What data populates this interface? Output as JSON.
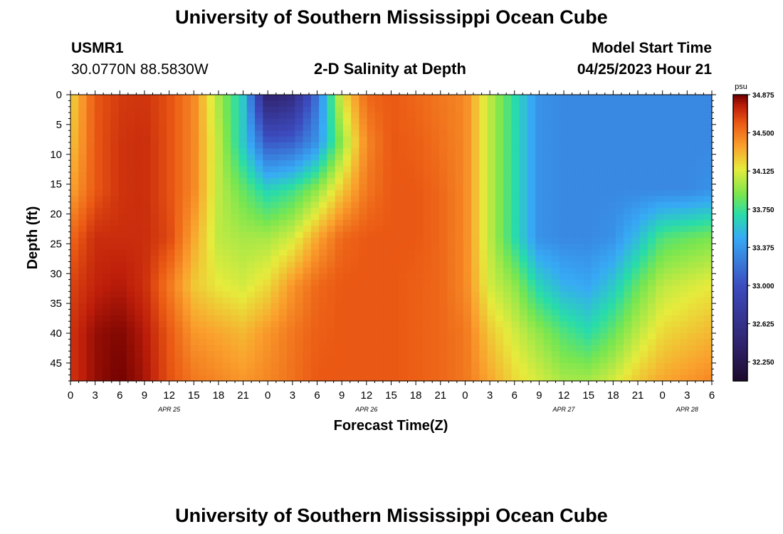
{
  "header": {
    "title": "University of Southern Mississippi Ocean Cube",
    "station_id": "USMR1",
    "coordinates": "30.0770N  88.5830W",
    "subtitle": "2-D Salinity at Depth",
    "model_start_label": "Model Start Time",
    "model_start_value": "04/25/2023 Hour 21"
  },
  "footer": {
    "title": "University of Southern Mississippi Ocean Cube"
  },
  "chart_data": {
    "type": "heatmap",
    "xlabel": "Forecast Time(Z)",
    "ylabel": "Depth (ft)",
    "x_ticks": [
      "0",
      "3",
      "6",
      "9",
      "12",
      "15",
      "18",
      "21",
      "0",
      "3",
      "6",
      "9",
      "12",
      "15",
      "18",
      "21",
      "0",
      "3",
      "6",
      "9",
      "12",
      "15",
      "18",
      "21",
      "0",
      "3",
      "6"
    ],
    "x_date_labels": [
      {
        "label": "APR 25",
        "at_tick": 4
      },
      {
        "label": "APR 26",
        "at_tick": 12
      },
      {
        "label": "APR 27",
        "at_tick": 20
      },
      {
        "label": "APR 28",
        "at_tick": 25
      }
    ],
    "x_range_hours": [
      0,
      78
    ],
    "y_ticks": [
      0,
      5,
      10,
      15,
      20,
      25,
      30,
      35,
      40,
      45
    ],
    "y_range_ft": [
      0,
      48
    ],
    "y_inverted": true,
    "colorbar": {
      "unit": "psu",
      "min": 32.0625,
      "max": 34.875,
      "labels": [
        "34.875",
        "34.500",
        "34.125",
        "33.750",
        "33.375",
        "33.000",
        "32.625",
        "32.250"
      ]
    },
    "salinity_grid": {
      "depths_ft": [
        0,
        8,
        16,
        24,
        32,
        40,
        48
      ],
      "hours": [
        0,
        3,
        6,
        9,
        12,
        15,
        18,
        21,
        24,
        27,
        30,
        33,
        36,
        39,
        42,
        45,
        48,
        51,
        54,
        57,
        60,
        63,
        66,
        69,
        72,
        75,
        78
      ],
      "values": [
        [
          34.2,
          34.6,
          34.68,
          34.7,
          34.62,
          34.45,
          34.0,
          33.6,
          32.4,
          32.55,
          33.2,
          34.15,
          34.55,
          34.6,
          34.55,
          34.5,
          34.45,
          34.05,
          33.7,
          33.35,
          33.3,
          33.3,
          33.3,
          33.3,
          33.3,
          33.3,
          33.3
        ],
        [
          34.25,
          34.6,
          34.7,
          34.72,
          34.62,
          34.45,
          34.05,
          33.6,
          33.05,
          33.1,
          33.35,
          33.95,
          34.45,
          34.6,
          34.58,
          34.52,
          34.45,
          34.05,
          33.7,
          33.35,
          33.3,
          33.3,
          33.3,
          33.3,
          33.3,
          33.3,
          33.3
        ],
        [
          34.35,
          34.6,
          34.7,
          34.72,
          34.62,
          34.45,
          34.05,
          33.85,
          33.65,
          33.75,
          33.95,
          34.25,
          34.5,
          34.6,
          34.6,
          34.55,
          34.45,
          34.05,
          33.7,
          33.35,
          33.3,
          33.3,
          33.3,
          33.3,
          33.3,
          33.3,
          33.35
        ],
        [
          34.55,
          34.72,
          34.72,
          34.72,
          34.65,
          34.35,
          34.05,
          34.0,
          34.0,
          34.1,
          34.35,
          34.55,
          34.6,
          34.6,
          34.6,
          34.55,
          34.45,
          34.05,
          33.7,
          33.35,
          33.3,
          33.3,
          33.35,
          33.55,
          33.8,
          33.85,
          33.9
        ],
        [
          34.65,
          34.75,
          34.78,
          34.72,
          34.5,
          34.25,
          34.15,
          34.1,
          34.2,
          34.4,
          34.55,
          34.6,
          34.6,
          34.6,
          34.58,
          34.55,
          34.45,
          34.1,
          33.95,
          33.65,
          33.5,
          33.45,
          33.6,
          33.85,
          34.05,
          34.1,
          34.15
        ],
        [
          34.7,
          34.82,
          34.85,
          34.78,
          34.6,
          34.4,
          34.35,
          34.3,
          34.4,
          34.5,
          34.58,
          34.6,
          34.6,
          34.6,
          34.58,
          34.55,
          34.5,
          34.25,
          34.1,
          33.95,
          33.8,
          33.7,
          33.85,
          34.05,
          34.2,
          34.25,
          34.3
        ],
        [
          34.7,
          34.82,
          34.87,
          34.8,
          34.62,
          34.5,
          34.45,
          34.4,
          34.45,
          34.52,
          34.6,
          34.6,
          34.6,
          34.6,
          34.58,
          34.55,
          34.5,
          34.35,
          34.2,
          34.1,
          34.0,
          34.0,
          34.1,
          34.25,
          34.35,
          34.4,
          34.45
        ]
      ]
    }
  }
}
